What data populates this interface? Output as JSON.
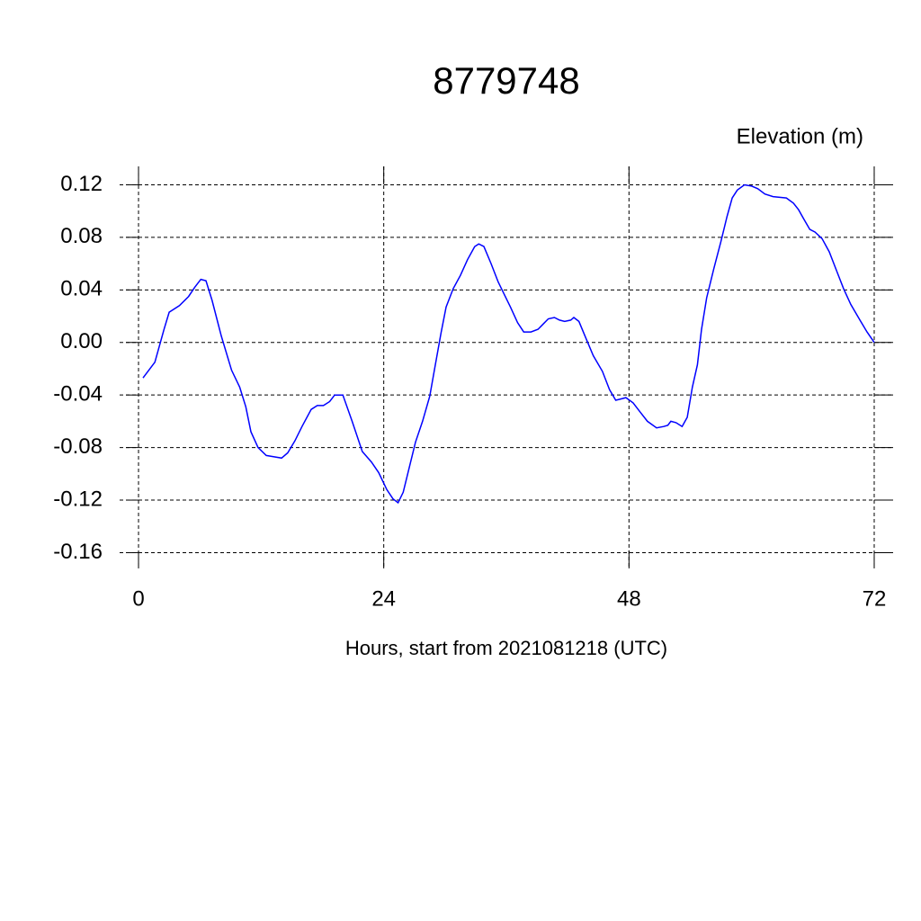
{
  "chart_data": {
    "type": "line",
    "title": "8779748",
    "ylabel": "Elevation (m)",
    "xlabel": "Hours, start from 2021081218 (UTC)",
    "x": [
      0.44,
      1.6,
      2.5,
      3.0,
      4.0,
      4.9,
      5.5,
      6.1,
      6.6,
      7.2,
      8.1,
      9.1,
      9.9,
      10.5,
      11.0,
      11.7,
      12.5,
      13.2,
      14.0,
      14.6,
      15.3,
      16.0,
      16.9,
      17.5,
      18.1,
      18.7,
      19.2,
      20.0,
      20.9,
      21.9,
      22.8,
      23.5,
      24.3,
      24.9,
      25.4,
      25.9,
      26.6,
      27.1,
      27.8,
      28.5,
      29.0,
      29.6,
      30.1,
      30.8,
      31.5,
      32.2,
      32.9,
      33.3,
      33.8,
      34.5,
      35.2,
      35.7,
      36.4,
      37.1,
      37.7,
      38.4,
      39.1,
      39.6,
      40.1,
      40.7,
      41.2,
      41.7,
      42.3,
      42.6,
      43.1,
      43.8,
      44.5,
      45.4,
      46.1,
      46.7,
      47.2,
      47.7,
      48.4,
      49.1,
      49.8,
      50.7,
      51.4,
      51.8,
      52.1,
      52.6,
      53.2,
      53.7,
      54.2,
      54.7,
      55.1,
      55.6,
      56.3,
      57.0,
      57.6,
      58.1,
      58.6,
      59.3,
      60.0,
      60.6,
      61.3,
      62.1,
      63.4,
      64.1,
      64.6,
      65.1,
      65.7,
      66.2,
      66.9,
      67.6,
      68.3,
      69.0,
      69.7,
      70.6,
      71.3,
      72.0
    ],
    "series": [
      {
        "color": "#0000ff",
        "values": [
          -0.027,
          -0.015,
          0.01,
          0.023,
          0.028,
          0.035,
          0.042,
          0.048,
          0.047,
          0.032,
          0.005,
          -0.021,
          -0.034,
          -0.049,
          -0.068,
          -0.08,
          -0.086,
          -0.087,
          -0.088,
          -0.084,
          -0.075,
          -0.064,
          -0.051,
          -0.048,
          -0.048,
          -0.045,
          -0.04,
          -0.04,
          -0.06,
          -0.083,
          -0.091,
          -0.099,
          -0.112,
          -0.119,
          -0.122,
          -0.114,
          -0.092,
          -0.076,
          -0.06,
          -0.041,
          -0.019,
          0.007,
          0.027,
          0.041,
          0.051,
          0.063,
          0.073,
          0.075,
          0.073,
          0.06,
          0.046,
          0.038,
          0.027,
          0.015,
          0.008,
          0.008,
          0.01,
          0.014,
          0.018,
          0.019,
          0.017,
          0.016,
          0.017,
          0.019,
          0.016,
          0.003,
          -0.01,
          -0.022,
          -0.036,
          -0.044,
          -0.043,
          -0.042,
          -0.046,
          -0.053,
          -0.06,
          -0.065,
          -0.064,
          -0.063,
          -0.06,
          -0.061,
          -0.064,
          -0.057,
          -0.034,
          -0.017,
          0.01,
          0.034,
          0.056,
          0.077,
          0.096,
          0.11,
          0.116,
          0.12,
          0.119,
          0.117,
          0.113,
          0.111,
          0.11,
          0.106,
          0.101,
          0.094,
          0.086,
          0.084,
          0.079,
          0.069,
          0.055,
          0.041,
          0.029,
          0.017,
          0.008,
          0.0
        ]
      }
    ],
    "xlim": [
      -1.85,
      73.85
    ],
    "ylim": [
      -0.172,
      0.134
    ],
    "xticks": [
      0,
      24,
      48,
      72
    ],
    "yticks": [
      0.12,
      0.08,
      0.04,
      {
        "value": 0,
        "label": "0.00"
      },
      -0.04,
      -0.08,
      -0.12,
      -0.16
    ],
    "grid": true
  }
}
